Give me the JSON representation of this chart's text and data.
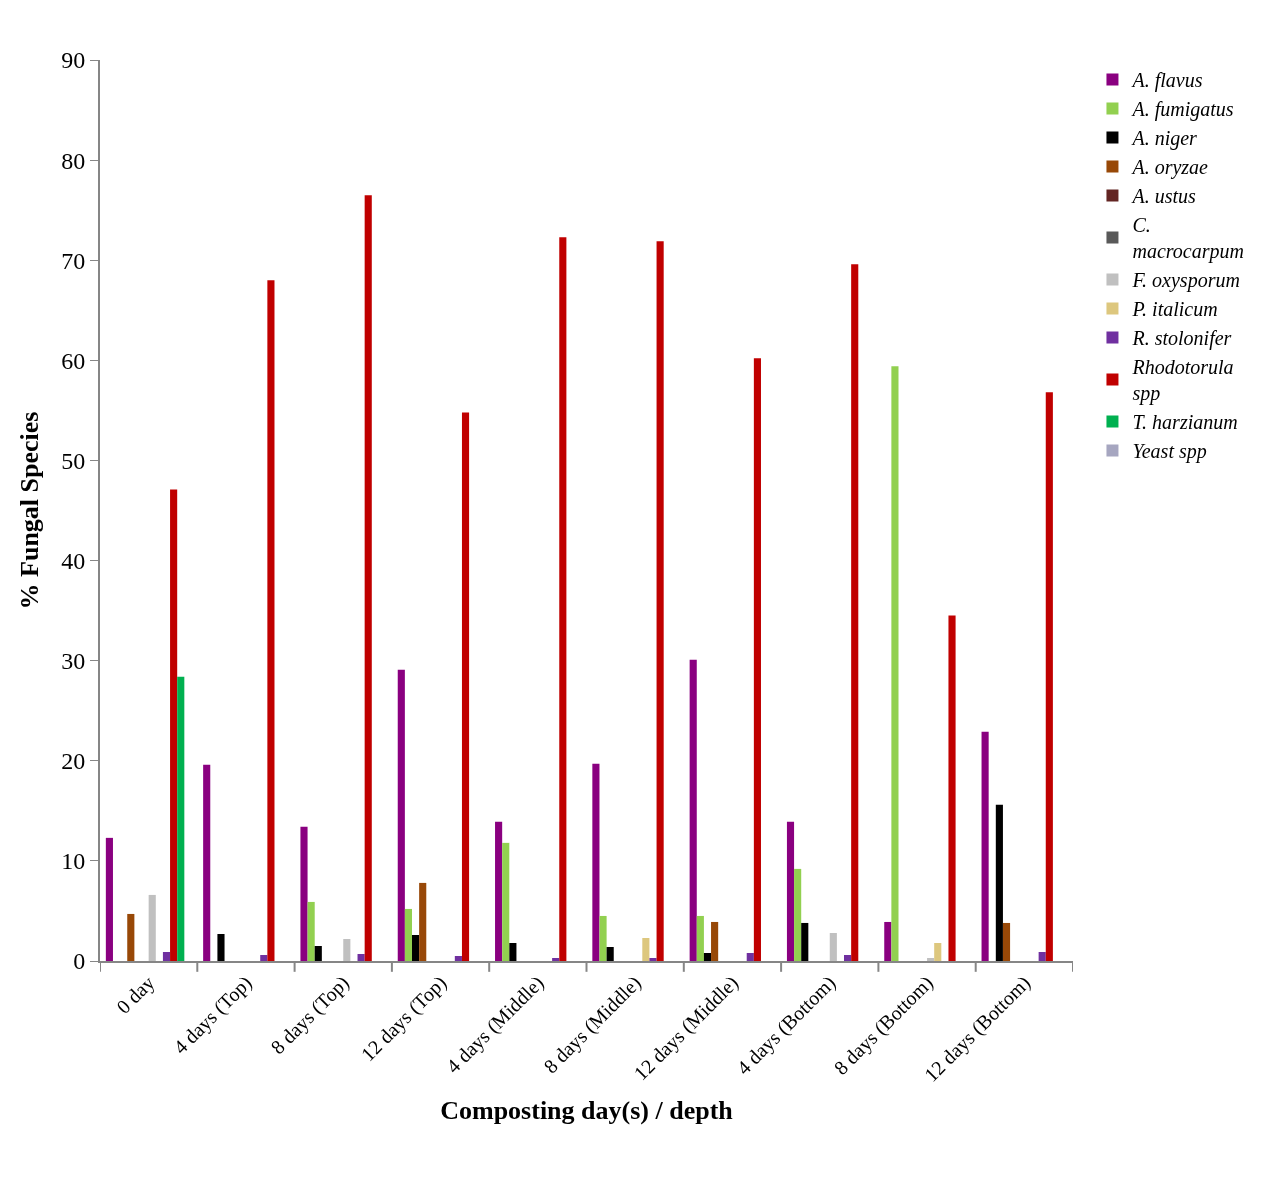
{
  "chart_data": {
    "type": "bar",
    "xlabel": "Composting day(s) / depth",
    "ylabel": "% Fungal Species",
    "categories": [
      "0 day",
      "4 days (Top)",
      "8 days (Top)",
      "12 days (Top)",
      "4 days (Middle)",
      "8 days (Middle)",
      "12 days (Middle)",
      "4 days (Bottom)",
      "8 days (Bottom)",
      "12 days (Bottom)"
    ],
    "series": [
      {
        "name": "A. flavus",
        "color": "#8a0080",
        "values": [
          12.3,
          19.6,
          13.4,
          29.1,
          13.9,
          19.7,
          30.1,
          13.9,
          3.9,
          22.9
        ]
      },
      {
        "name": "A. fumigatus",
        "color": "#92d050",
        "values": [
          0,
          0,
          5.9,
          5.2,
          11.8,
          4.5,
          4.5,
          9.2,
          59.4,
          0
        ]
      },
      {
        "name": "A. niger",
        "color": "#000000",
        "values": [
          0,
          2.7,
          1.5,
          2.6,
          1.8,
          1.4,
          0.8,
          3.8,
          0,
          15.6
        ]
      },
      {
        "name": "A. oryzae",
        "color": "#984807",
        "values": [
          4.7,
          0,
          0,
          7.8,
          0,
          0,
          3.9,
          0,
          0,
          3.8
        ]
      },
      {
        "name": "A. ustus",
        "color": "#632523",
        "values": [
          0,
          0,
          0,
          0,
          0,
          0,
          0,
          0,
          0,
          0
        ]
      },
      {
        "name": "C. macrocarpum",
        "color": "#595959",
        "values": [
          0,
          0,
          0,
          0,
          0,
          0,
          0,
          0,
          0,
          0
        ]
      },
      {
        "name": "F. oxysporum",
        "color": "#c0c0c0",
        "values": [
          6.6,
          0,
          2.2,
          0,
          0,
          0,
          0,
          2.8,
          0.3,
          0
        ]
      },
      {
        "name": "P. italicum",
        "color": "#ddc77e",
        "values": [
          0,
          0,
          0,
          0,
          0,
          2.3,
          0,
          0,
          1.8,
          0
        ]
      },
      {
        "name": "R. stolonifer",
        "color": "#7030a0",
        "values": [
          0.9,
          0.6,
          0.7,
          0.5,
          0.3,
          0.3,
          0.8,
          0.6,
          0,
          0.9
        ]
      },
      {
        "name": "Rhodotorula spp",
        "color": "#c00000",
        "values": [
          47.1,
          68.0,
          76.5,
          54.8,
          72.3,
          71.9,
          60.2,
          69.6,
          34.5,
          56.8
        ]
      },
      {
        "name": "T. harzianum",
        "color": "#00b050",
        "values": [
          28.4,
          0,
          0,
          0,
          0,
          0,
          0,
          0,
          0,
          0
        ]
      },
      {
        "name": "Yeast spp",
        "color": "#a6a6c0",
        "values": [
          0,
          0,
          0,
          0,
          0,
          0,
          0,
          0,
          0,
          0
        ]
      }
    ],
    "ylim": [
      0,
      90
    ],
    "yticks": [
      0,
      10,
      20,
      30,
      40,
      50,
      60,
      70,
      80,
      90
    ],
    "legend": "right"
  }
}
